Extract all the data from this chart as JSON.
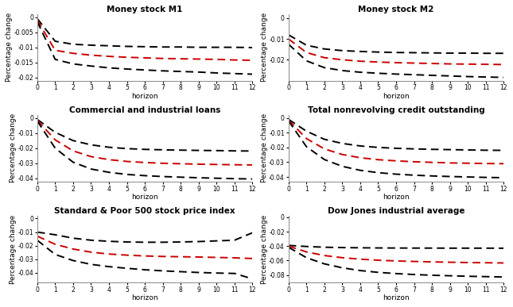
{
  "titles": [
    "Money stock M1",
    "Money stock M2",
    "Commercial and industrial loans",
    "Total nonrevolving credit outstanding",
    "Standard & Poor 500 stock price index",
    "Dow Jones industrial average"
  ],
  "horizon": [
    0,
    1,
    2,
    3,
    4,
    5,
    6,
    7,
    8,
    9,
    10,
    11,
    12
  ],
  "series": {
    "M1": {
      "upper": [
        -0.0005,
        -0.008,
        -0.009,
        -0.0093,
        -0.0095,
        -0.0097,
        -0.0098,
        -0.0099,
        -0.0099,
        -0.01,
        -0.01,
        -0.01,
        -0.0101
      ],
      "mid": [
        -0.001,
        -0.011,
        -0.012,
        -0.0126,
        -0.013,
        -0.0133,
        -0.0135,
        -0.0137,
        -0.0138,
        -0.0139,
        -0.014,
        -0.0142,
        -0.0143
      ],
      "lower": [
        -0.0015,
        -0.014,
        -0.0155,
        -0.0162,
        -0.0168,
        -0.0172,
        -0.0175,
        -0.0178,
        -0.018,
        -0.0182,
        -0.0185,
        -0.0187,
        -0.0189
      ],
      "ylim": [
        -0.021,
        0.001
      ],
      "yticks": [
        0.0,
        -0.005,
        -0.01,
        -0.015,
        -0.02
      ]
    },
    "M2": {
      "upper": [
        -0.008,
        -0.013,
        -0.0148,
        -0.0156,
        -0.016,
        -0.0163,
        -0.0165,
        -0.0166,
        -0.0167,
        -0.0168,
        -0.0168,
        -0.0169,
        -0.0169
      ],
      "mid": [
        -0.01,
        -0.0165,
        -0.019,
        -0.02,
        -0.0207,
        -0.0211,
        -0.0214,
        -0.0216,
        -0.0218,
        -0.022,
        -0.0221,
        -0.0222,
        -0.0223
      ],
      "lower": [
        -0.0125,
        -0.0205,
        -0.0238,
        -0.0252,
        -0.026,
        -0.0265,
        -0.0269,
        -0.0272,
        -0.0275,
        -0.0278,
        -0.0281,
        -0.0283,
        -0.0285
      ],
      "ylim": [
        -0.03,
        0.002
      ],
      "yticks": [
        0.0,
        -0.01,
        -0.02
      ]
    },
    "CI": {
      "upper": [
        -0.001,
        -0.0095,
        -0.015,
        -0.0178,
        -0.0194,
        -0.0203,
        -0.0208,
        -0.0211,
        -0.0213,
        -0.0215,
        -0.0216,
        -0.0218,
        -0.0219
      ],
      "mid": [
        -0.0015,
        -0.0145,
        -0.0218,
        -0.0256,
        -0.0276,
        -0.0288,
        -0.0295,
        -0.03,
        -0.0303,
        -0.0306,
        -0.0308,
        -0.031,
        -0.0311
      ],
      "lower": [
        -0.002,
        -0.02,
        -0.0293,
        -0.0338,
        -0.036,
        -0.0374,
        -0.0382,
        -0.0388,
        -0.0392,
        -0.0396,
        -0.0399,
        -0.0402,
        -0.0404
      ],
      "ylim": [
        -0.042,
        0.002
      ],
      "yticks": [
        0.0,
        -0.01,
        -0.02,
        -0.03,
        -0.04
      ]
    },
    "TNC": {
      "upper": [
        -0.001,
        -0.009,
        -0.0145,
        -0.0173,
        -0.019,
        -0.02,
        -0.0206,
        -0.021,
        -0.0213,
        -0.0215,
        -0.0217,
        -0.0219,
        -0.022
      ],
      "mid": [
        -0.0015,
        -0.014,
        -0.021,
        -0.0248,
        -0.027,
        -0.0283,
        -0.0291,
        -0.0297,
        -0.0301,
        -0.0305,
        -0.0307,
        -0.0309,
        -0.031
      ],
      "lower": [
        -0.002,
        -0.0195,
        -0.0282,
        -0.0328,
        -0.0355,
        -0.0371,
        -0.0381,
        -0.0388,
        -0.0393,
        -0.0397,
        -0.04,
        -0.0403,
        -0.0405
      ],
      "ylim": [
        -0.043,
        0.002
      ],
      "yticks": [
        0.0,
        -0.01,
        -0.02,
        -0.03,
        -0.04
      ]
    },
    "SP500": {
      "upper": [
        -0.01,
        -0.012,
        -0.0145,
        -0.016,
        -0.0168,
        -0.0173,
        -0.0175,
        -0.0175,
        -0.0173,
        -0.017,
        -0.0165,
        -0.016,
        -0.0105
      ],
      "mid": [
        -0.013,
        -0.019,
        -0.0225,
        -0.0248,
        -0.0262,
        -0.027,
        -0.0276,
        -0.028,
        -0.0282,
        -0.0284,
        -0.0287,
        -0.029,
        -0.0295
      ],
      "lower": [
        -0.016,
        -0.0265,
        -0.031,
        -0.0338,
        -0.0355,
        -0.0367,
        -0.0378,
        -0.0386,
        -0.0392,
        -0.0398,
        -0.0402,
        -0.0405,
        -0.0445
      ],
      "ylim": [
        -0.047,
        0.002
      ],
      "yticks": [
        0.0,
        -0.01,
        -0.02,
        -0.03,
        -0.04
      ]
    },
    "DJ": {
      "upper": [
        -0.039,
        -0.0405,
        -0.0415,
        -0.042,
        -0.0423,
        -0.0425,
        -0.0426,
        -0.0427,
        -0.0427,
        -0.0428,
        -0.0428,
        -0.0428,
        -0.0429
      ],
      "mid": [
        -0.04,
        -0.048,
        -0.053,
        -0.056,
        -0.058,
        -0.0595,
        -0.0605,
        -0.0612,
        -0.0618,
        -0.0623,
        -0.0627,
        -0.063,
        -0.0633
      ],
      "lower": [
        -0.0415,
        -0.056,
        -0.0645,
        -0.07,
        -0.0738,
        -0.0763,
        -0.078,
        -0.0793,
        -0.0803,
        -0.081,
        -0.0817,
        -0.0822,
        -0.0827
      ],
      "ylim": [
        -0.09,
        0.002
      ],
      "yticks": [
        0.0,
        -0.02,
        -0.04,
        -0.06,
        -0.08
      ]
    }
  },
  "red_color": "#cc0000",
  "black_color": "#000000",
  "line_width": 1.4,
  "dash_on": 5,
  "dash_off": 3,
  "ylabel": "Percentage change",
  "xlabel": "horizon",
  "title_fontsize": 7.5,
  "label_fontsize": 6.5,
  "tick_fontsize": 5.5,
  "background": "#ffffff",
  "figsize": [
    6.45,
    3.87
  ],
  "dpi": 100
}
